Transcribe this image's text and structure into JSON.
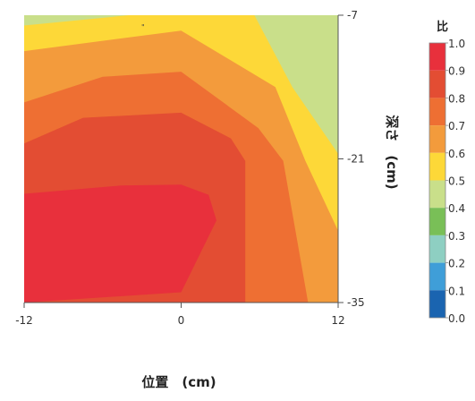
{
  "chart_data": {
    "type": "contour",
    "xlabel": "位置　(cm)",
    "ylabel": "深さ　(cm)",
    "xlim": [
      -12,
      12
    ],
    "ylim": [
      -35,
      -7
    ],
    "x_ticks": [
      -12,
      0,
      12
    ],
    "y_ticks": [
      -7,
      -21,
      -35
    ],
    "y_axis_position": "right",
    "colorbar": {
      "title": "比",
      "placement": "right",
      "ticks": [
        "1.0",
        "0.9",
        "0.8",
        "0.7",
        "0.6",
        "0.5",
        "0.4",
        "0.3",
        "0.2",
        "0.1",
        "0.0"
      ],
      "colors": [
        "#e8303c",
        "#e34d33",
        "#ee6f33",
        "#f39b3c",
        "#fdd838",
        "#c9df8a",
        "#79bf57",
        "#8ecfc2",
        "#3f9ed8",
        "#1a64b0",
        "#114b9b"
      ]
    },
    "levels": [
      {
        "level": 0.9,
        "color": "#e8303c",
        "polygon": [
          [
            -12,
            -24.4
          ],
          [
            -4.6,
            -23.6
          ],
          [
            0,
            -23.5
          ],
          [
            2.1,
            -24.5
          ],
          [
            2.7,
            -27
          ],
          [
            0,
            -34
          ],
          [
            -12,
            -35
          ]
        ]
      },
      {
        "level": 0.8,
        "color": "#e34d33",
        "polygon": [
          [
            -12,
            -19.5
          ],
          [
            -7.5,
            -17
          ],
          [
            0,
            -16.5
          ],
          [
            3.8,
            -19
          ],
          [
            4.9,
            -21.2
          ],
          [
            4.9,
            -35
          ],
          [
            0,
            -35
          ],
          [
            -12,
            -35
          ]
        ]
      },
      {
        "level": 0.7,
        "color": "#ee6f33",
        "polygon": [
          [
            -12,
            -15.5
          ],
          [
            -6,
            -13
          ],
          [
            0,
            -12.5
          ],
          [
            5.9,
            -18
          ],
          [
            7.8,
            -21.2
          ],
          [
            9.7,
            -35
          ],
          [
            -12,
            -35
          ]
        ]
      },
      {
        "level": 0.6,
        "color": "#f39b3c",
        "polygon": [
          [
            -12,
            -10.5
          ],
          [
            0,
            -8.5
          ],
          [
            7.2,
            -14
          ],
          [
            9.5,
            -21.2
          ],
          [
            12,
            -28
          ],
          [
            12,
            -35
          ],
          [
            -12,
            -35
          ]
        ]
      },
      {
        "level": 0.5,
        "color": "#fdd838",
        "polygon": [
          [
            -12,
            -8
          ],
          [
            -4,
            -7
          ],
          [
            5.6,
            -7
          ],
          [
            8.5,
            -14
          ],
          [
            12,
            -20.5
          ],
          [
            12,
            -35
          ],
          [
            -12,
            -35
          ]
        ]
      }
    ],
    "annotation": "\""
  }
}
